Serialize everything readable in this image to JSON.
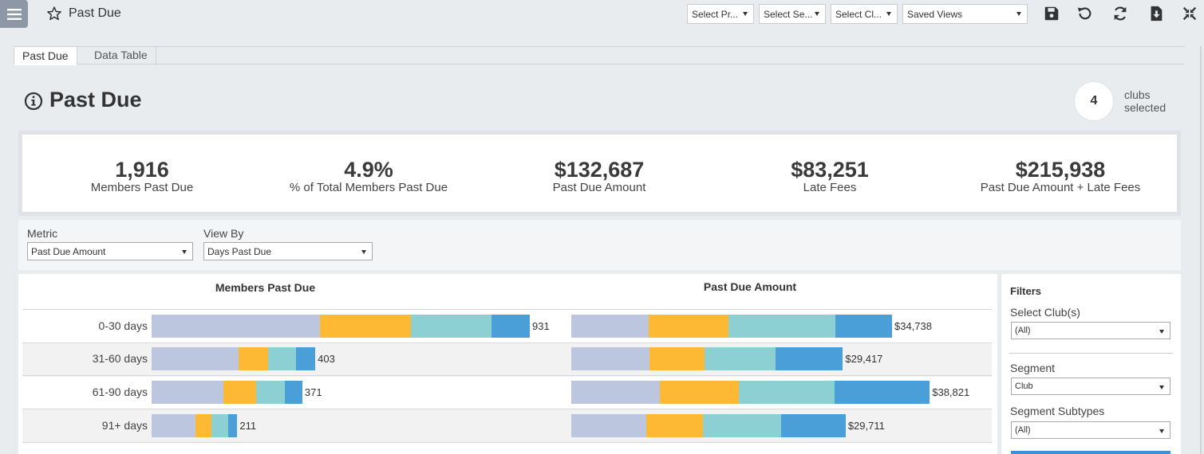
{
  "app": {
    "title": "Past Due"
  },
  "toolbar": {
    "selects": [
      {
        "label": "Select Pr...",
        "name": "select-program-dropdown"
      },
      {
        "label": "Select Se...",
        "name": "select-segment-dropdown"
      },
      {
        "label": "Select Cl...",
        "name": "select-club-dropdown"
      }
    ],
    "saved_views": "Saved Views",
    "icons": [
      "save-icon",
      "undo-icon",
      "refresh-icon",
      "download-icon",
      "collapse-icon"
    ]
  },
  "tabs": [
    {
      "label": "Past Due",
      "active": true
    },
    {
      "label": "Data Table",
      "active": false
    }
  ],
  "header": {
    "title": "Past Due",
    "clubs_count": "4",
    "clubs_text": "clubs selected"
  },
  "kpis": [
    {
      "value": "1,916",
      "label": "Members Past Due"
    },
    {
      "value": "4.9%",
      "label": "% of Total Members Past Due"
    },
    {
      "value": "$132,687",
      "label": "Past Due Amount"
    },
    {
      "value": "$83,251",
      "label": "Late Fees"
    },
    {
      "value": "$215,938",
      "label": "Past Due Amount + Late Fees"
    }
  ],
  "controls": {
    "metric_label": "Metric",
    "metric_value": "Past Due Amount",
    "viewby_label": "View By",
    "viewby_value": "Days Past Due"
  },
  "colors": [
    "#bcc6de",
    "#fdb933",
    "#8dd0d3",
    "#4a9fd8"
  ],
  "chart_data": {
    "type": "bar",
    "orientation": "horizontal-stacked",
    "categories": [
      "0-30 days",
      "31-60 days",
      "61-90 days",
      "91+ days"
    ],
    "charts": [
      {
        "title": "Members Past Due",
        "totals": [
          931,
          403,
          371,
          211
        ],
        "labels": [
          "931",
          "403",
          "371",
          "211"
        ],
        "segments": [
          [
            276,
            200,
            210,
            186
          ],
          [
            150,
            67,
            96,
            67
          ],
          [
            132,
            64,
            84,
            70
          ],
          [
            63,
            44,
            52,
            40
          ]
        ]
      },
      {
        "title": "Past Due Amount",
        "totals": [
          34738,
          29417,
          38821,
          29711
        ],
        "labels": [
          "$34,738",
          "$29,417",
          "$38,821",
          "$29,711"
        ],
        "segments": [
          [
            10785,
            7741,
            8317,
            6660
          ],
          [
            11167,
            5418,
            7407,
            4994
          ],
          [
            14953,
            7037,
            8940,
            6920
          ],
          [
            7906,
            6675,
            8903,
            5727
          ]
        ]
      }
    ]
  },
  "filters": {
    "title": "Filters",
    "items": [
      {
        "label": "Select Club(s)",
        "value": "(All)"
      },
      {
        "label": "Segment",
        "value": "Club"
      },
      {
        "label": "Segment Subtypes",
        "value": "(All)"
      }
    ]
  }
}
